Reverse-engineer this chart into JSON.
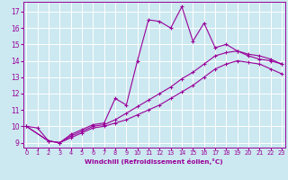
{
  "bg_color": "#cce8f0",
  "grid_color": "#ffffff",
  "line_color": "#990099",
  "xlabel": "Windchill (Refroidissement éolien,°C)",
  "xticks": [
    0,
    1,
    2,
    3,
    4,
    5,
    6,
    7,
    8,
    9,
    10,
    11,
    12,
    13,
    14,
    15,
    16,
    17,
    18,
    19,
    20,
    21,
    22,
    23
  ],
  "yticks": [
    9,
    10,
    11,
    12,
    13,
    14,
    15,
    16,
    17
  ],
  "xlim": [
    -0.3,
    23.3
  ],
  "ylim": [
    8.7,
    17.6
  ],
  "series_jagged_x": [
    0,
    1,
    2,
    3,
    4,
    5,
    6,
    7,
    8,
    9,
    10,
    11,
    12,
    13,
    14,
    15,
    16,
    17,
    18,
    19,
    20,
    21,
    22,
    23
  ],
  "series_jagged_y": [
    10.0,
    9.9,
    9.1,
    9.0,
    9.5,
    9.8,
    10.1,
    10.2,
    11.7,
    11.3,
    14.0,
    16.5,
    16.4,
    16.0,
    17.3,
    15.2,
    16.3,
    14.8,
    15.0,
    14.6,
    14.3,
    14.1,
    14.0,
    13.8
  ],
  "series_upper_x": [
    0,
    2,
    3,
    4,
    5,
    6,
    7,
    8,
    9,
    10,
    11,
    12,
    13,
    14,
    15,
    16,
    17,
    18,
    19,
    20,
    21,
    22,
    23
  ],
  "series_upper_y": [
    10.0,
    9.1,
    9.0,
    9.4,
    9.7,
    10.0,
    10.1,
    10.4,
    10.8,
    11.2,
    11.6,
    12.0,
    12.4,
    12.9,
    13.3,
    13.8,
    14.3,
    14.5,
    14.6,
    14.4,
    14.3,
    14.1,
    13.8
  ],
  "series_lower_x": [
    0,
    2,
    3,
    4,
    5,
    6,
    7,
    8,
    9,
    10,
    11,
    12,
    13,
    14,
    15,
    16,
    17,
    18,
    19,
    20,
    21,
    22,
    23
  ],
  "series_lower_y": [
    10.0,
    9.1,
    9.0,
    9.3,
    9.6,
    9.9,
    10.0,
    10.2,
    10.4,
    10.7,
    11.0,
    11.3,
    11.7,
    12.1,
    12.5,
    13.0,
    13.5,
    13.8,
    14.0,
    13.9,
    13.8,
    13.5,
    13.2
  ]
}
